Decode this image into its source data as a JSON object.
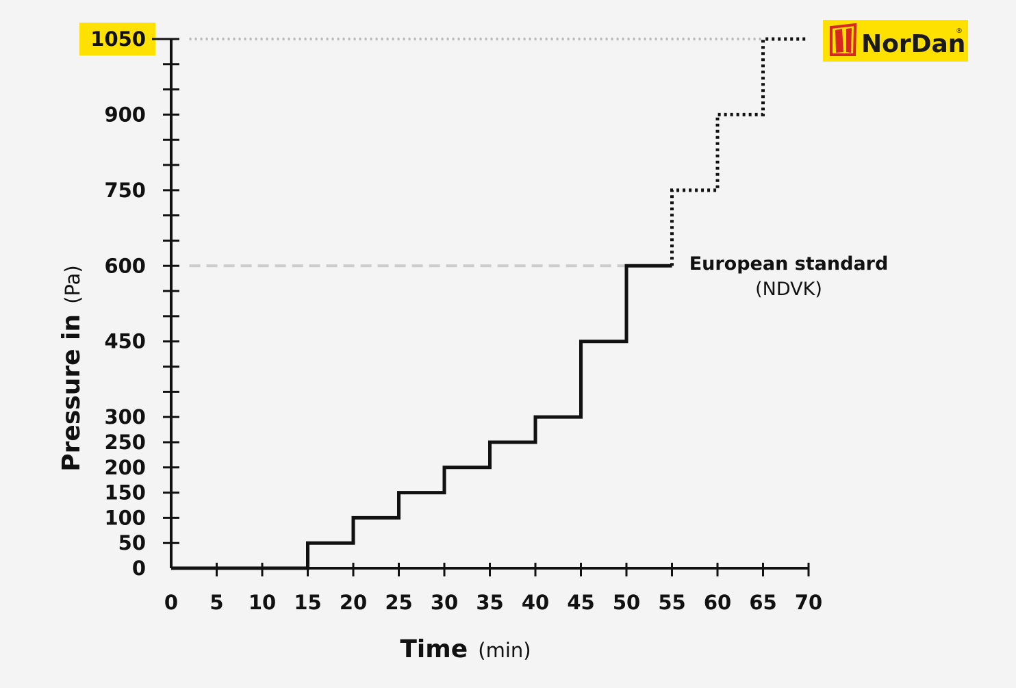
{
  "chart_data": {
    "type": "line",
    "xlabel": "Time",
    "xlabel_unit": "(min)",
    "ylabel": "Pressure in",
    "ylabel_unit": "(Pa)",
    "x_ticks": [
      0,
      5,
      10,
      15,
      20,
      25,
      30,
      35,
      40,
      45,
      50,
      55,
      60,
      65,
      70
    ],
    "y_ticks": [
      0,
      50,
      100,
      150,
      200,
      250,
      300,
      450,
      600,
      750,
      900,
      1050
    ],
    "y_minor_ticks": [
      0,
      50,
      100,
      150,
      200,
      250,
      300,
      350,
      400,
      450,
      500,
      550,
      600,
      650,
      700,
      750,
      800,
      850,
      900,
      950,
      1000,
      1050
    ],
    "highlighted_y_tick": 1050,
    "highlight_color": "#ffe100",
    "xlim": [
      0,
      70
    ],
    "ylim": [
      0,
      1050
    ],
    "series": [
      {
        "name": "European standard",
        "style": "solid",
        "color": "#111111",
        "x": [
          0,
          15,
          15,
          20,
          20,
          25,
          25,
          30,
          30,
          35,
          35,
          40,
          40,
          45,
          45,
          50,
          50,
          55
        ],
        "y": [
          0,
          0,
          50,
          50,
          100,
          100,
          150,
          150,
          200,
          200,
          250,
          250,
          300,
          300,
          450,
          450,
          600,
          600
        ]
      },
      {
        "style": "dotted",
        "color": "#111111",
        "x": [
          55,
          55,
          60,
          60,
          65,
          65,
          70
        ],
        "y": [
          600,
          750,
          750,
          900,
          900,
          1050,
          1050
        ]
      }
    ],
    "reference_lines": [
      {
        "y": 1050,
        "style": "dotted",
        "color": "#bbbbbb",
        "x_start": 2,
        "x_end": 65
      },
      {
        "y": 600,
        "style": "dashed",
        "color": "#cccccc",
        "x_start": 2,
        "x_end": 50
      }
    ],
    "annotation": {
      "line1": "European standard",
      "line2": "(NDVK)"
    }
  },
  "logo": {
    "text": "NorDan",
    "background": "#ffe100",
    "mark_color": "#d6281f",
    "registered": "®"
  }
}
